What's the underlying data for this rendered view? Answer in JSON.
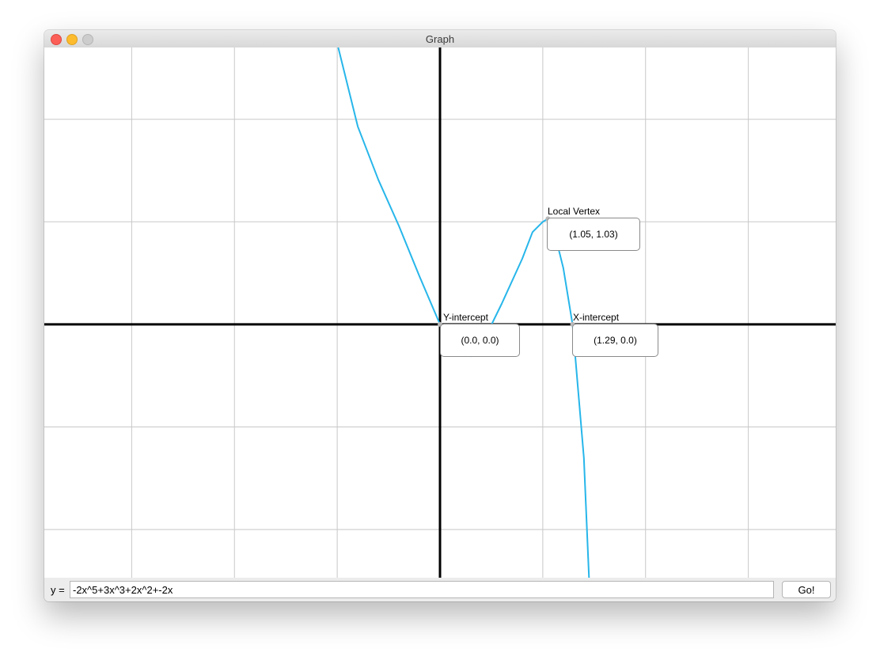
{
  "window": {
    "title": "Graph"
  },
  "graph": {
    "x_range": [
      -3.85,
      3.85
    ],
    "y_range": [
      -2.47,
      2.7
    ],
    "grid_step": 1,
    "grid_color": "#c8c8c8",
    "axis_color": "#000000",
    "curve_color": "#27b6ea",
    "points": {
      "local_vertex": {
        "label": "Local Vertex",
        "value": "(1.05, 1.03)",
        "x": 1.05,
        "y": 1.03
      },
      "y_intercept": {
        "label": "Y-intercept",
        "value": "(0.0, 0.0)",
        "x": 0.0,
        "y": 0.0
      },
      "x_intercept": {
        "label": "X-intercept",
        "value": "(1.29, 0.0)",
        "x": 1.29,
        "y": 0.0
      }
    }
  },
  "chart_data": {
    "type": "line",
    "series": [
      {
        "name": "y = -2x^5+3x^3+2x^2+-2x",
        "x": [
          -0.99,
          -0.8,
          -0.6,
          -0.4,
          -0.2,
          0,
          0.2,
          0.3,
          0.4,
          0.6,
          0.8,
          0.9,
          1.0,
          1.05,
          1.1,
          1.2,
          1.29,
          1.4,
          1.45
        ],
        "y": [
          2.7,
          1.93,
          1.41,
          0.96,
          0.47,
          0,
          -0.3,
          -0.31,
          -0.21,
          0.2,
          0.64,
          0.9,
          1.0,
          1.03,
          0.95,
          0.55,
          0,
          -1.3,
          -2.47
        ]
      }
    ],
    "xlim": [
      -3.85,
      3.85
    ],
    "ylim": [
      -2.47,
      2.7
    ],
    "grid": true,
    "equation": {
      "prefix": "y =",
      "value": "-2x^5+3x^3+2x^2+-2x"
    },
    "go_label": "Go!"
  },
  "input": {
    "prefix": "y =",
    "value": "-2x^5+3x^3+2x^2+-2x"
  },
  "go_button": {
    "label": "Go!"
  }
}
